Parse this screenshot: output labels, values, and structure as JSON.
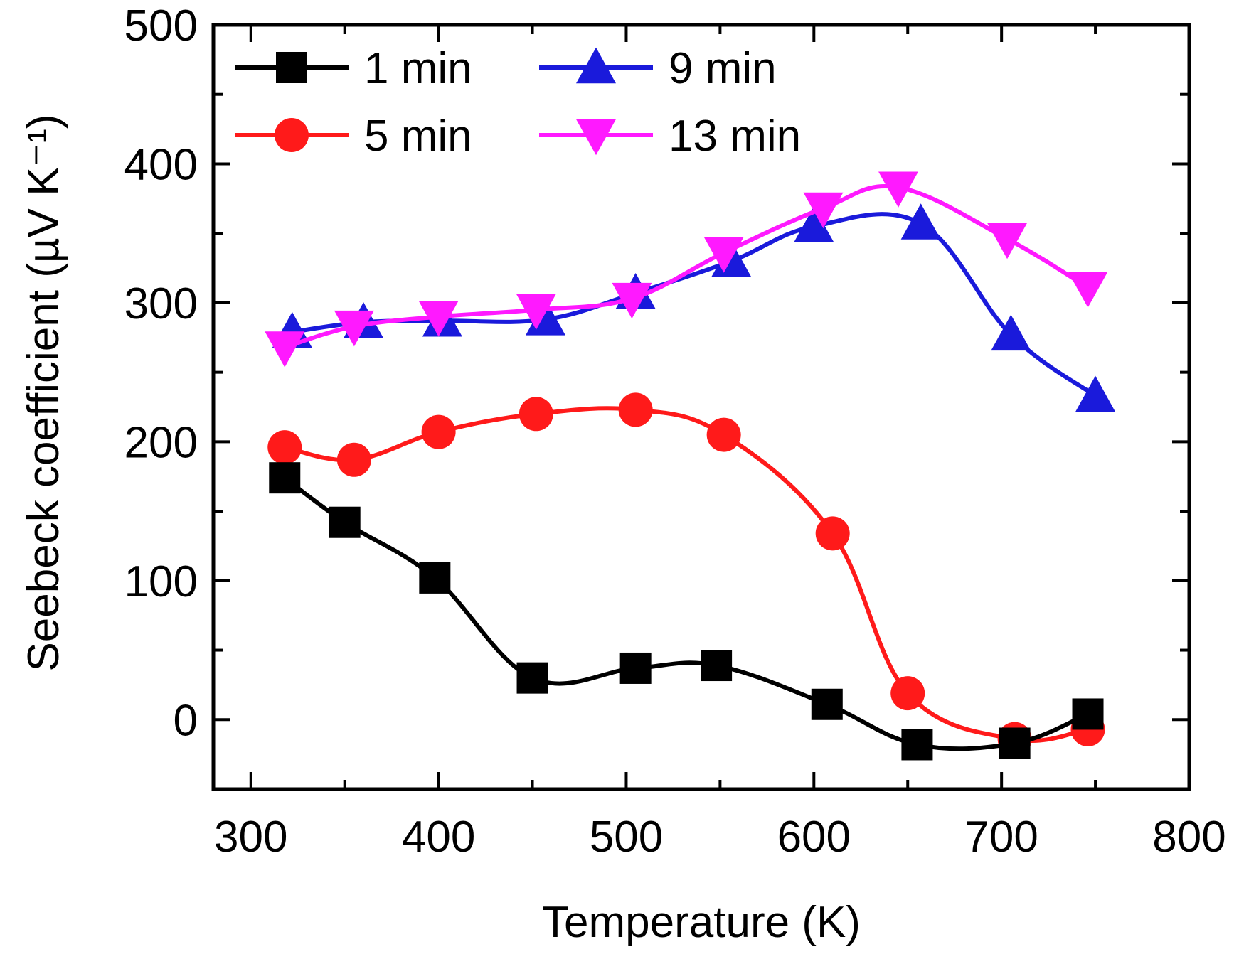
{
  "chart_data": {
    "type": "line",
    "title": "",
    "xlabel": "Temperature (K)",
    "ylabel": "Seebeck coefficient (µV K⁻¹)",
    "xlim": [
      280,
      800
    ],
    "ylim": [
      -50,
      500
    ],
    "xticks": [
      300,
      400,
      500,
      600,
      700,
      800
    ],
    "yticks": [
      0,
      100,
      200,
      300,
      400,
      500
    ],
    "grid": false,
    "legend_position": "top-left",
    "series": [
      {
        "name": "1 min",
        "color": "#000000",
        "marker": "square",
        "x": [
          318,
          350,
          398,
          450,
          505,
          548,
          607,
          655,
          707,
          746
        ],
        "y": [
          174,
          142,
          102,
          30,
          37,
          39,
          11,
          -18,
          -17,
          4
        ]
      },
      {
        "name": "5 min",
        "color": "#ff1a1a",
        "marker": "circle",
        "x": [
          318,
          355,
          400,
          452,
          505,
          552,
          610,
          650,
          707,
          746
        ],
        "y": [
          196,
          187,
          207,
          220,
          223,
          205,
          134,
          19,
          -14,
          -7
        ]
      },
      {
        "name": "9 min",
        "color": "#1a1adb",
        "marker": "triangle-up",
        "x": [
          322,
          360,
          402,
          457,
          505,
          556,
          600,
          657,
          705,
          750
        ],
        "y": [
          279,
          286,
          287,
          288,
          307,
          330,
          355,
          357,
          277,
          233
        ]
      },
      {
        "name": "13 min",
        "color": "#ff19ff",
        "marker": "triangle-down",
        "x": [
          318,
          355,
          400,
          452,
          503,
          552,
          605,
          645,
          703,
          746
        ],
        "y": [
          268,
          283,
          290,
          295,
          303,
          336,
          368,
          383,
          346,
          311
        ]
      }
    ]
  }
}
